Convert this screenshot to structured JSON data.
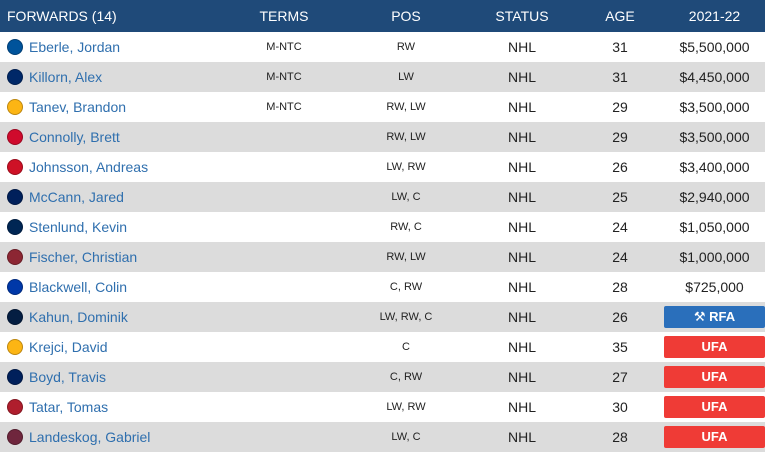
{
  "header": {
    "forwards": "FORWARDS (14)",
    "terms": "TERMS",
    "pos": "POS",
    "status": "STATUS",
    "age": "AGE",
    "season": "2021-22"
  },
  "players": [
    {
      "name": "Eberle, Jordan",
      "terms": "M-NTC",
      "pos": "RW",
      "status": "NHL",
      "age": "31",
      "salary": "$5,500,000",
      "team_icon": "islanders-icon",
      "color": "#00539b"
    },
    {
      "name": "Killorn, Alex",
      "terms": "M-NTC",
      "pos": "LW",
      "status": "NHL",
      "age": "31",
      "salary": "$4,450,000",
      "team_icon": "lightning-icon",
      "color": "#002868"
    },
    {
      "name": "Tanev, Brandon",
      "terms": "M-NTC",
      "pos": "RW, LW",
      "status": "NHL",
      "age": "29",
      "salary": "$3,500,000",
      "team_icon": "penguins-icon",
      "color": "#fcb514"
    },
    {
      "name": "Connolly, Brett",
      "terms": "",
      "pos": "RW, LW",
      "status": "NHL",
      "age": "29",
      "salary": "$3,500,000",
      "team_icon": "blackhawks-icon",
      "color": "#cf0a2c"
    },
    {
      "name": "Johnsson, Andreas",
      "terms": "",
      "pos": "LW, RW",
      "status": "NHL",
      "age": "26",
      "salary": "$3,400,000",
      "team_icon": "devils-icon",
      "color": "#ce1126"
    },
    {
      "name": "McCann, Jared",
      "terms": "",
      "pos": "LW, C",
      "status": "NHL",
      "age": "25",
      "salary": "$2,940,000",
      "team_icon": "maple-leafs-icon",
      "color": "#00205b"
    },
    {
      "name": "Stenlund, Kevin",
      "terms": "",
      "pos": "RW, C",
      "status": "NHL",
      "age": "24",
      "salary": "$1,050,000",
      "team_icon": "blue-jackets-icon",
      "color": "#002654"
    },
    {
      "name": "Fischer, Christian",
      "terms": "",
      "pos": "RW, LW",
      "status": "NHL",
      "age": "24",
      "salary": "$1,000,000",
      "team_icon": "coyotes-icon",
      "color": "#8c2633"
    },
    {
      "name": "Blackwell, Colin",
      "terms": "",
      "pos": "C, RW",
      "status": "NHL",
      "age": "28",
      "salary": "$725,000",
      "team_icon": "rangers-icon",
      "color": "#0038a8"
    },
    {
      "name": "Kahun, Dominik",
      "terms": "",
      "pos": "LW, RW, C",
      "status": "NHL",
      "age": "26",
      "salary": "RFA",
      "badge": "rfa",
      "team_icon": "oilers-icon",
      "color": "#041e42"
    },
    {
      "name": "Krejci, David",
      "terms": "",
      "pos": "C",
      "status": "NHL",
      "age": "35",
      "salary": "UFA",
      "badge": "ufa",
      "team_icon": "bruins-icon",
      "color": "#fcb514"
    },
    {
      "name": "Boyd, Travis",
      "terms": "",
      "pos": "C, RW",
      "status": "NHL",
      "age": "27",
      "salary": "UFA",
      "badge": "ufa",
      "team_icon": "canucks-icon",
      "color": "#00205b"
    },
    {
      "name": "Tatar, Tomas",
      "terms": "",
      "pos": "LW, RW",
      "status": "NHL",
      "age": "30",
      "salary": "UFA",
      "badge": "ufa",
      "team_icon": "canadiens-icon",
      "color": "#af1e2d"
    },
    {
      "name": "Landeskog, Gabriel",
      "terms": "",
      "pos": "LW, C",
      "status": "NHL",
      "age": "28",
      "salary": "UFA",
      "badge": "ufa",
      "team_icon": "avalanche-icon",
      "color": "#6f263d"
    }
  ],
  "colors": {
    "header_bg": "#1f4a79",
    "rfa": "#2a6fbb",
    "ufa": "#ef3b36",
    "link": "#2f6fae",
    "alt_row": "#dcdcdc"
  }
}
